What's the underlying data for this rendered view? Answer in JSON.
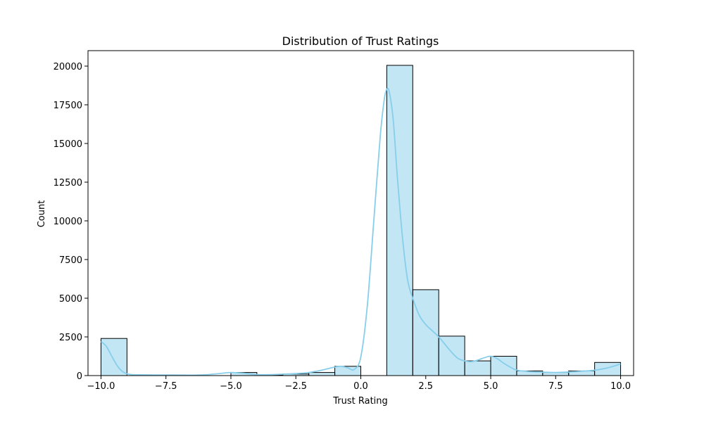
{
  "chart_data": {
    "type": "bar",
    "title": "Distribution of Trust Ratings",
    "xlabel": "Trust Rating",
    "ylabel": "Count",
    "xlim": [
      -10.5,
      10.5
    ],
    "ylim": [
      0,
      21000
    ],
    "xticks": [
      -10.0,
      -7.5,
      -5.0,
      -2.5,
      0.0,
      2.5,
      5.0,
      7.5,
      10.0
    ],
    "xtick_labels": [
      "−10.0",
      "−7.5",
      "−5.0",
      "−2.5",
      "0.0",
      "2.5",
      "5.0",
      "7.5",
      "10.0"
    ],
    "yticks": [
      0,
      2500,
      5000,
      7500,
      10000,
      12500,
      15000,
      17500,
      20000
    ],
    "ytick_labels": [
      "0",
      "2500",
      "5000",
      "7500",
      "10000",
      "12500",
      "15000",
      "17500",
      "20000"
    ],
    "bar_color": "#87CEEB",
    "kde_color": "#87CEEB",
    "bins": [
      {
        "x0": -10,
        "x1": -9,
        "count": 2400
      },
      {
        "x0": -9,
        "x1": -8,
        "count": 0
      },
      {
        "x0": -8,
        "x1": -7,
        "count": 0
      },
      {
        "x0": -7,
        "x1": -6,
        "count": 0
      },
      {
        "x0": -6,
        "x1": -5,
        "count": 0
      },
      {
        "x0": -5,
        "x1": -4,
        "count": 200
      },
      {
        "x0": -4,
        "x1": -3,
        "count": 30
      },
      {
        "x0": -3,
        "x1": -2,
        "count": 100
      },
      {
        "x0": -2,
        "x1": -1,
        "count": 200
      },
      {
        "x0": -1,
        "x1": 0,
        "count": 600
      },
      {
        "x0": 0,
        "x1": 1,
        "count": 0
      },
      {
        "x0": 1,
        "x1": 2,
        "count": 20050
      },
      {
        "x0": 2,
        "x1": 3,
        "count": 5550
      },
      {
        "x0": 3,
        "x1": 4,
        "count": 2550
      },
      {
        "x0": 4,
        "x1": 5,
        "count": 950
      },
      {
        "x0": 5,
        "x1": 6,
        "count": 1250
      },
      {
        "x0": 6,
        "x1": 7,
        "count": 300
      },
      {
        "x0": 7,
        "x1": 8,
        "count": 200
      },
      {
        "x0": 8,
        "x1": 9,
        "count": 300
      },
      {
        "x0": 9,
        "x1": 10,
        "count": 850
      }
    ],
    "kde": {
      "x": [
        -10,
        -9.8,
        -9.6,
        -9.4,
        -9.2,
        -9.0,
        -8.8,
        -8.5,
        -8.0,
        -7.5,
        -7.0,
        -6.5,
        -6.0,
        -5.5,
        -5.0,
        -4.5,
        -4.0,
        -3.5,
        -3.0,
        -2.5,
        -2.0,
        -1.5,
        -1.0,
        -0.75,
        -0.5,
        -0.25,
        0.0,
        0.25,
        0.5,
        0.75,
        0.9,
        1.0,
        1.1,
        1.25,
        1.4,
        1.6,
        1.8,
        2.0,
        2.25,
        2.5,
        2.75,
        3.0,
        3.25,
        3.5,
        3.75,
        4.0,
        4.25,
        4.5,
        4.75,
        5.0,
        5.25,
        5.5,
        5.75,
        6.0,
        6.5,
        7.0,
        7.5,
        8.0,
        8.5,
        9.0,
        9.5,
        10.0
      ],
      "y": [
        2200,
        1900,
        1300,
        700,
        300,
        120,
        60,
        50,
        40,
        40,
        35,
        30,
        50,
        120,
        200,
        150,
        60,
        60,
        90,
        130,
        200,
        350,
        550,
        600,
        500,
        400,
        1200,
        4500,
        10000,
        15500,
        17800,
        18500,
        18300,
        16500,
        13000,
        9000,
        6200,
        5000,
        3900,
        3300,
        2900,
        2500,
        2000,
        1500,
        1100,
        950,
        900,
        1000,
        1150,
        1250,
        1100,
        800,
        550,
        350,
        250,
        220,
        200,
        230,
        280,
        350,
        500,
        750
      ]
    }
  }
}
